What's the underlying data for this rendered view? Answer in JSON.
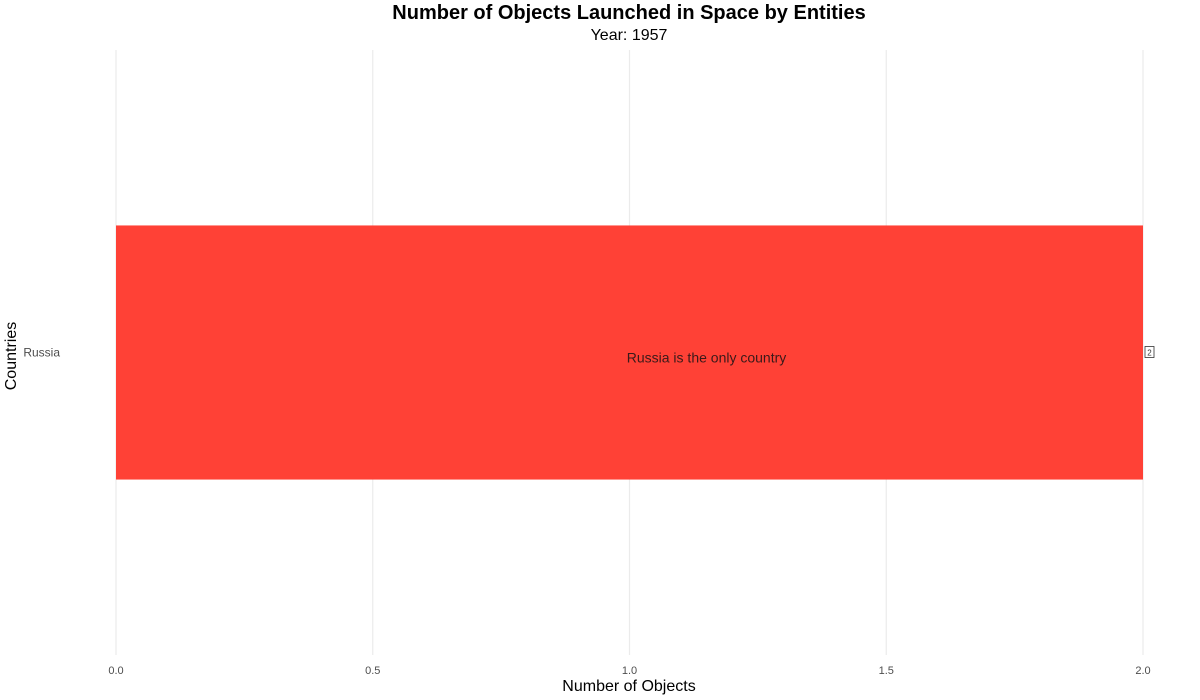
{
  "chart_data": {
    "type": "bar",
    "orientation": "horizontal",
    "title": "Number of Objects Launched in Space by Entities",
    "subtitle": "Year: 1957",
    "xlabel": "Number of Objects",
    "ylabel": "Countries",
    "categories": [
      "Russia"
    ],
    "values": [
      2
    ],
    "value_labels": [
      "2"
    ],
    "bar_color": "#ff4136",
    "xlim": [
      0,
      2
    ],
    "x_ticks": [
      {
        "value": 0,
        "label": "0.0"
      },
      {
        "value": 0.5,
        "label": "0.5"
      },
      {
        "value": 1,
        "label": "1.0"
      },
      {
        "value": 1.5,
        "label": "1.5"
      },
      {
        "value": 2,
        "label": "2.0"
      }
    ],
    "annotation": {
      "text": "Russia is the only country",
      "x": 1.15,
      "category": "Russia"
    },
    "grid": true,
    "legend": "none"
  }
}
